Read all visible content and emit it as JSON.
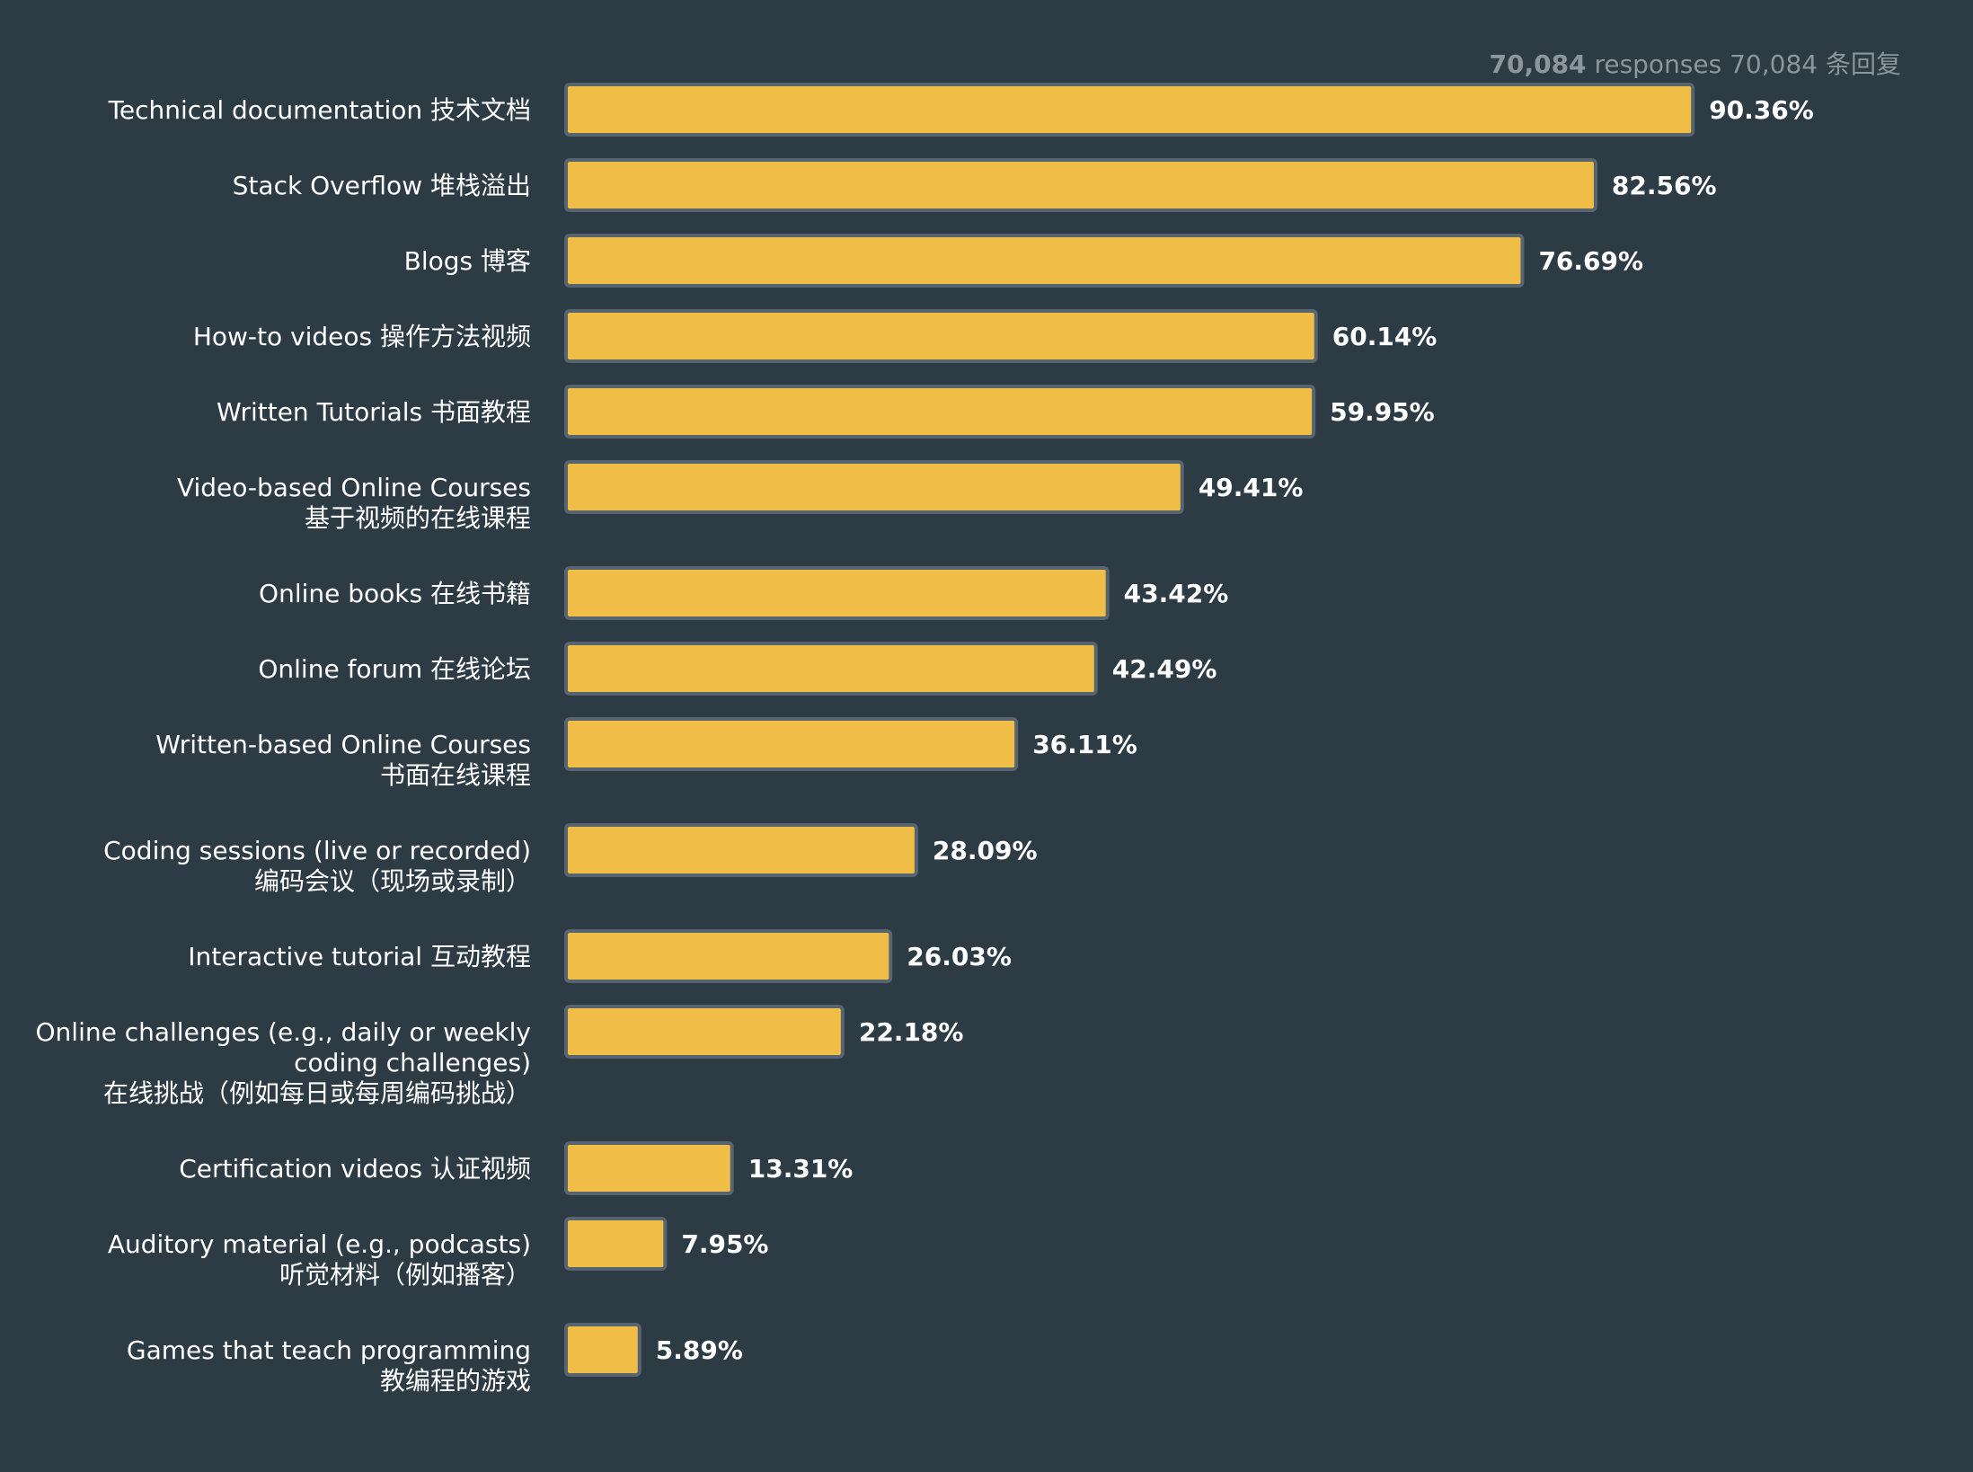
{
  "responses_note": {
    "count": "70,084",
    "text": " responses  70,084 条回复"
  },
  "colors": {
    "background": "#2c3b44",
    "bar_fill": "#f0be46",
    "bar_stroke": "#566570",
    "text": "#ffffff",
    "muted_text": "#8c969c"
  },
  "chart_data": {
    "type": "bar",
    "orientation": "horizontal",
    "unit": "%",
    "xlim": [
      0,
      100
    ],
    "grid": false,
    "categories": [
      [
        "Technical documentation 技术文档"
      ],
      [
        "Stack Overflow 堆栈溢出"
      ],
      [
        "Blogs 博客"
      ],
      [
        "How-to videos 操作方法视频"
      ],
      [
        "Written Tutorials 书面教程"
      ],
      [
        "Video-based Online Courses",
        "基于视频的在线课程"
      ],
      [
        "Online books 在线书籍"
      ],
      [
        "Online forum 在线论坛"
      ],
      [
        "Written-based Online Courses",
        "书面在线课程"
      ],
      [
        "Coding sessions (live or recorded)",
        "编码会议（现场或录制）"
      ],
      [
        "Interactive tutorial 互动教程"
      ],
      [
        "Online challenges (e.g., daily or weekly",
        "coding challenges)",
        "在线挑战（例如每日或每周编码挑战）"
      ],
      [
        "Certification videos 认证视频"
      ],
      [
        "Auditory material (e.g., podcasts)",
        "听觉材料（例如播客）"
      ],
      [
        "Games that teach programming",
        "教编程的游戏"
      ]
    ],
    "values": [
      90.36,
      82.56,
      76.69,
      60.14,
      59.95,
      49.41,
      43.42,
      42.49,
      36.11,
      28.09,
      26.03,
      22.18,
      13.31,
      7.95,
      5.89
    ],
    "value_labels": [
      "90.36%",
      "82.56%",
      "76.69%",
      "60.14%",
      "59.95%",
      "49.41%",
      "43.42%",
      "42.49%",
      "36.11%",
      "28.09%",
      "26.03%",
      "22.18%",
      "13.31%",
      "7.95%",
      "5.89%"
    ]
  }
}
